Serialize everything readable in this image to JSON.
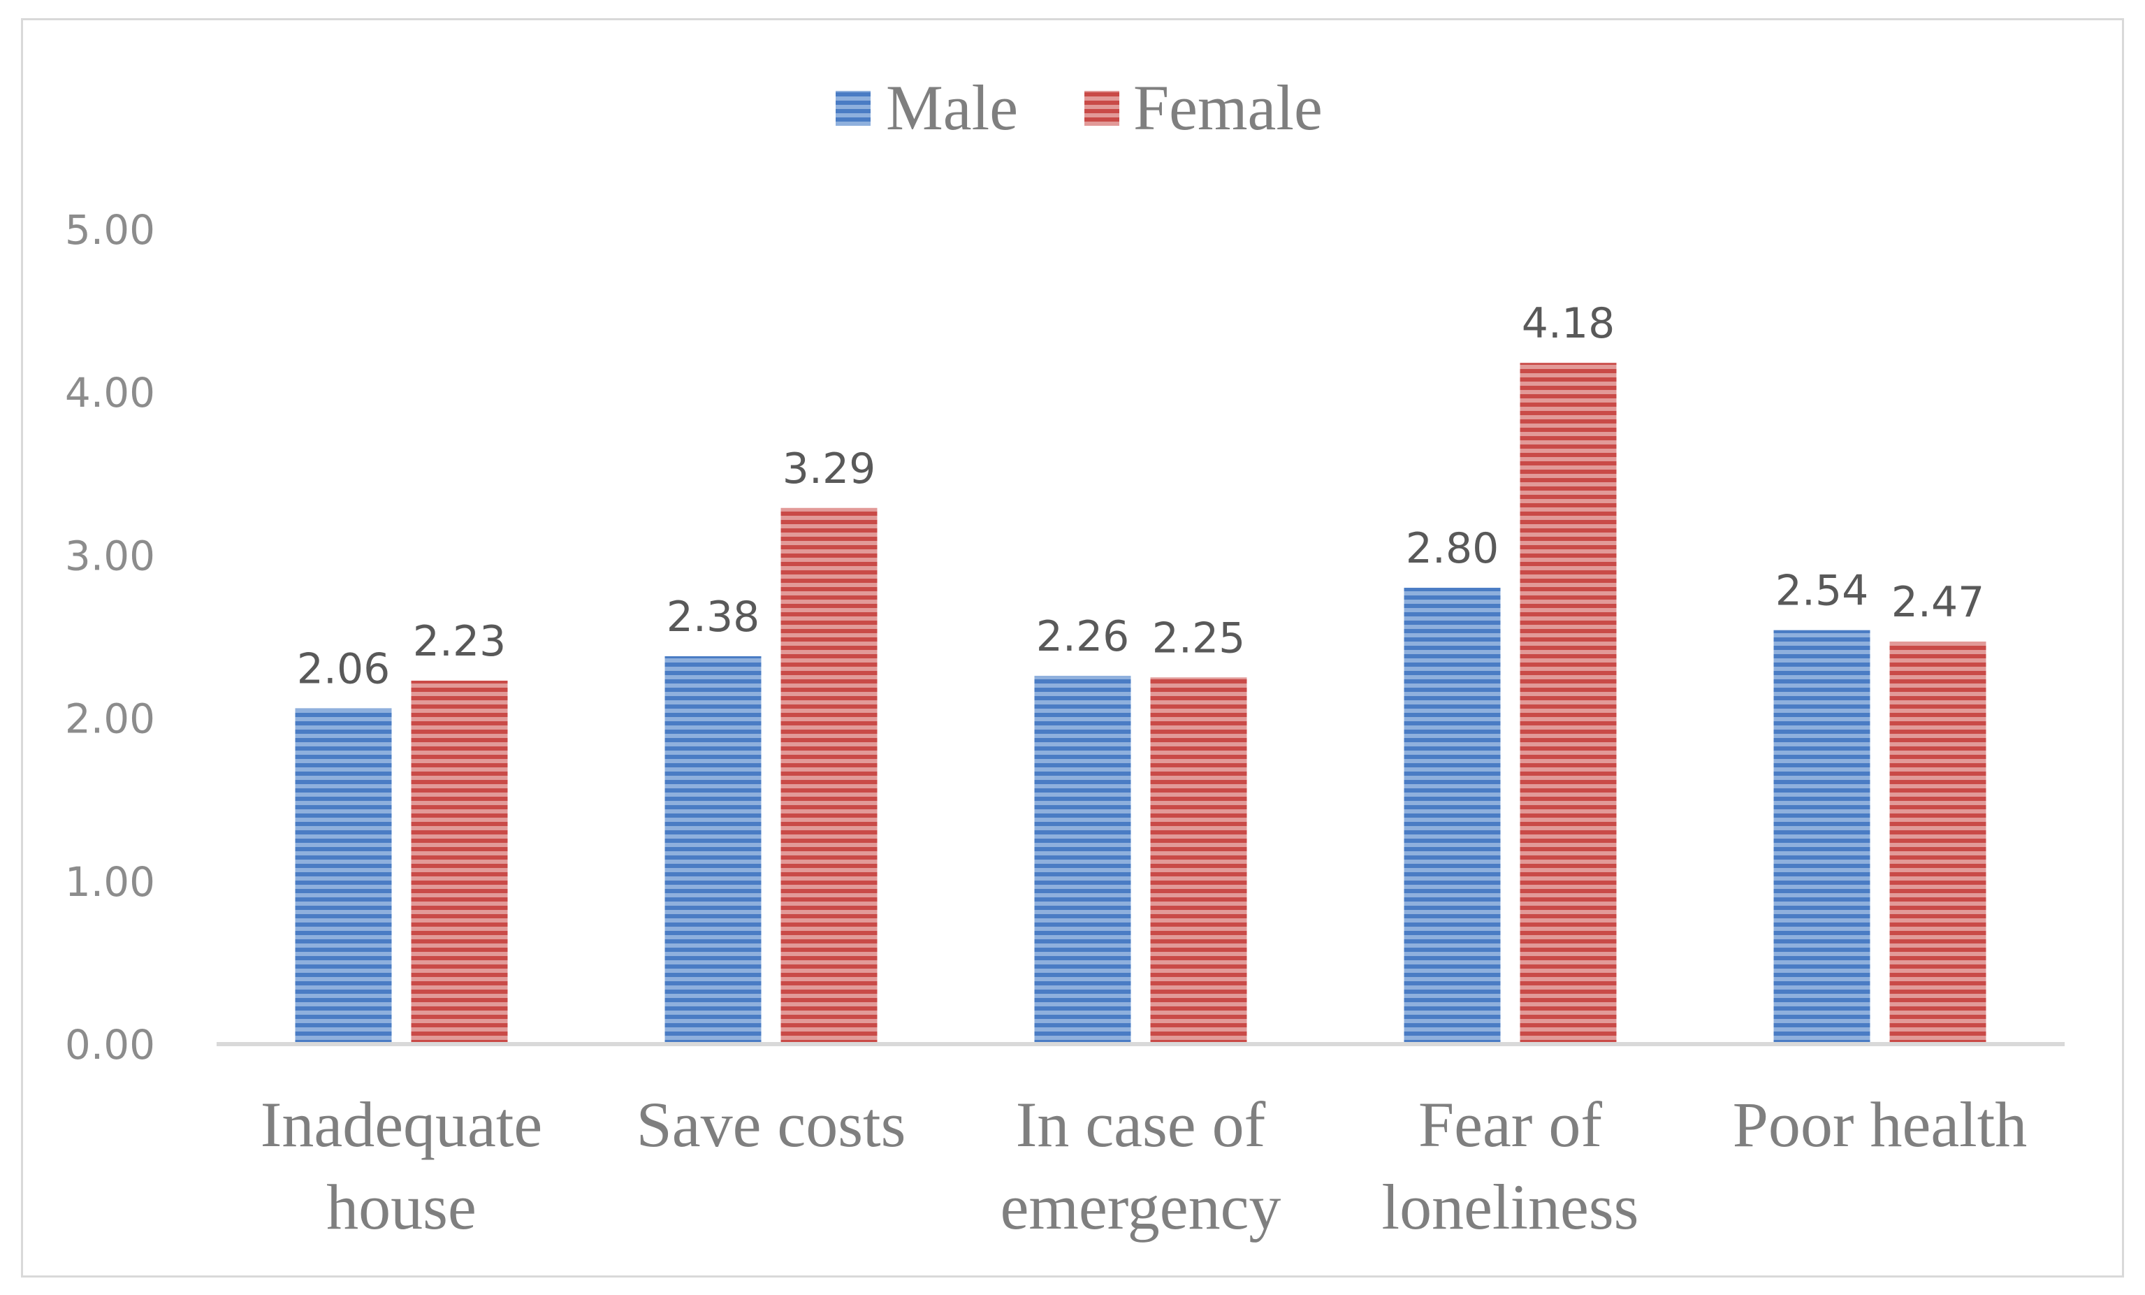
{
  "chart_data": {
    "type": "bar",
    "title": "",
    "xlabel": "",
    "ylabel": "",
    "categories": [
      [
        "Inadequate",
        "house"
      ],
      [
        "Save costs"
      ],
      [
        "In case of",
        "emergency"
      ],
      [
        "Fear of",
        "loneliness"
      ],
      [
        "Poor health"
      ]
    ],
    "series": [
      {
        "name": "Male",
        "values": [
          2.06,
          2.38,
          2.26,
          2.8,
          2.54
        ],
        "labels": [
          "2.06",
          "2.38",
          "2.26",
          "2.80",
          "2.54"
        ],
        "color": "#4f81bd"
      },
      {
        "name": "Female",
        "values": [
          2.23,
          3.29,
          2.25,
          4.18,
          2.47
        ],
        "labels": [
          "2.23",
          "3.29",
          "2.25",
          "4.18",
          "2.47"
        ],
        "color": "#c0504d"
      }
    ],
    "ylim": [
      0,
      5
    ],
    "yticks": [
      "0.00",
      "1.00",
      "2.00",
      "3.00",
      "4.00",
      "5.00"
    ],
    "ytick_values": [
      0,
      1,
      2,
      3,
      4,
      5
    ],
    "legend_position": "top-center",
    "grid": false
  }
}
